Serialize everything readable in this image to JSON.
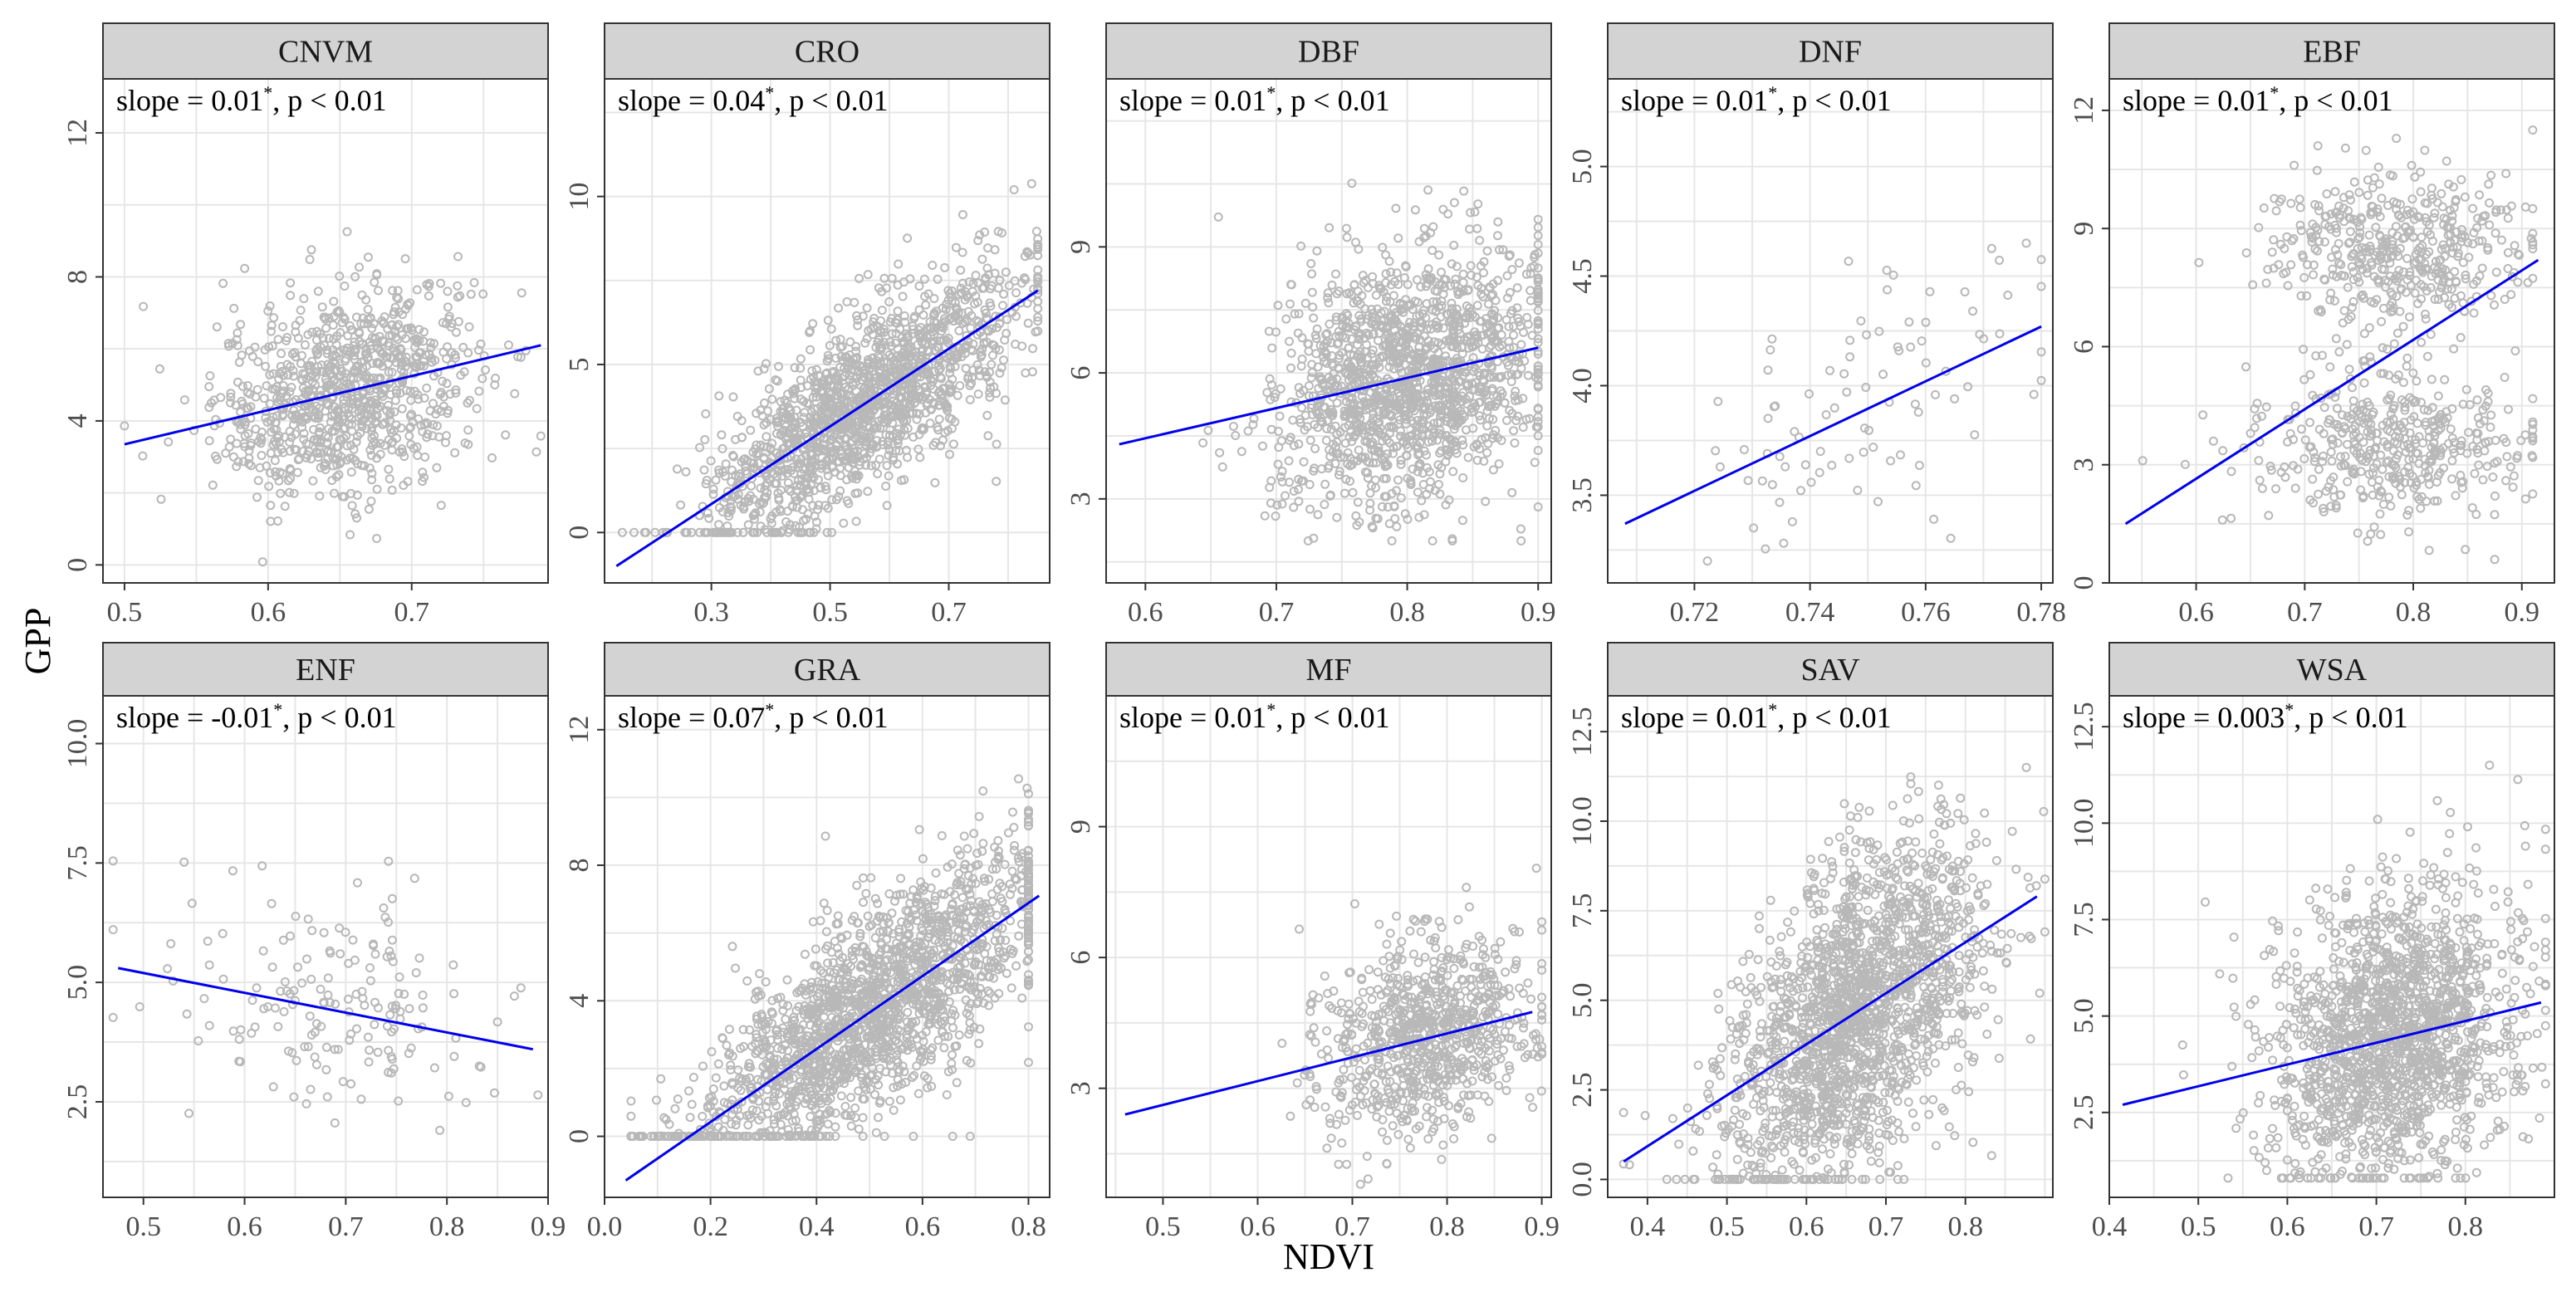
{
  "chart_data": {
    "type": "scatter",
    "x_axis_label": "NDVI",
    "y_axis_label": "GPP",
    "panels": [
      {
        "title": "CNVM",
        "annotation": {
          "prefix": "slope = 0.01",
          "star": "*",
          "suffix": ", p < 0.01"
        },
        "xlim": [
          0.485,
          0.795
        ],
        "ylim": [
          -0.5,
          13.5
        ],
        "xticks": [
          0.5,
          0.6,
          0.7
        ],
        "xtick_labels": [
          "0.5",
          "0.6",
          "0.7"
        ],
        "yticks": [
          0,
          4,
          8,
          12
        ],
        "ytick_labels": [
          "0",
          "4",
          "8",
          "12"
        ],
        "fit": {
          "x": [
            0.5,
            0.79
          ],
          "y": [
            3.35,
            6.1
          ]
        },
        "cloud": {
          "n": 900,
          "x_mean": 0.655,
          "x_sd": 0.045,
          "y_slope": 9.5,
          "y_noise": 1.4,
          "x_min": 0.5,
          "x_max": 0.79,
          "y_min": 0,
          "y_max": 12
        }
      },
      {
        "title": "CRO",
        "annotation": {
          "prefix": "slope = 0.04",
          "star": "*",
          "suffix": ", p < 0.01"
        },
        "xlim": [
          0.12,
          0.87
        ],
        "ylim": [
          -1.5,
          13.5
        ],
        "xticks": [
          0.3,
          0.5,
          0.7
        ],
        "xtick_labels": [
          "0.3",
          "0.5",
          "0.7"
        ],
        "yticks": [
          0,
          5,
          10
        ],
        "ytick_labels": [
          "0",
          "5",
          "10"
        ],
        "fit": {
          "x": [
            0.14,
            0.85
          ],
          "y": [
            -1.0,
            7.2
          ]
        },
        "cloud": {
          "n": 1500,
          "x_mean": 0.55,
          "x_sd": 0.13,
          "y_slope": 11.5,
          "y_noise": 1.3,
          "x_min": 0.15,
          "x_max": 0.85,
          "y_min": 0,
          "y_max": 10.5
        }
      },
      {
        "title": "DBF",
        "annotation": {
          "prefix": "slope = 0.01",
          "star": "*",
          "suffix": ", p < 0.01"
        },
        "xlim": [
          0.57,
          0.91
        ],
        "ylim": [
          1.0,
          13.0
        ],
        "xticks": [
          0.6,
          0.7,
          0.8,
          0.9
        ],
        "xtick_labels": [
          "0.6",
          "0.7",
          "0.8",
          "0.9"
        ],
        "yticks": [
          3,
          6,
          9
        ],
        "ytick_labels": [
          "3",
          "6",
          "9"
        ],
        "fit": {
          "x": [
            0.58,
            0.9
          ],
          "y": [
            4.3,
            6.6
          ]
        },
        "cloud": {
          "n": 1500,
          "x_mean": 0.8,
          "x_sd": 0.05,
          "y_slope": 7.0,
          "y_noise": 1.5,
          "x_min": 0.58,
          "x_max": 0.9,
          "y_min": 2,
          "y_max": 11
        }
      },
      {
        "title": "DNF",
        "annotation": {
          "prefix": "slope = 0.01",
          "star": "*",
          "suffix": ", p < 0.01"
        },
        "xlim": [
          0.705,
          0.782
        ],
        "ylim": [
          3.1,
          5.4
        ],
        "xticks": [
          0.72,
          0.74,
          0.76,
          0.78
        ],
        "xtick_labels": [
          "0.72",
          "0.74",
          "0.76",
          "0.78"
        ],
        "yticks": [
          3.5,
          4.0,
          4.5,
          5.0
        ],
        "ytick_labels": [
          "3.5",
          "4.0",
          "4.5",
          "5.0"
        ],
        "fit": {
          "x": [
            0.708,
            0.78
          ],
          "y": [
            3.37,
            4.27
          ]
        },
        "cloud": {
          "n": 90,
          "x_mean": 0.748,
          "x_sd": 0.015,
          "y_slope": 12.5,
          "y_noise": 0.3,
          "x_min": 0.708,
          "x_max": 0.78,
          "y_min": 3.2,
          "y_max": 5.2
        }
      },
      {
        "title": "EBF",
        "annotation": {
          "prefix": "slope = 0.01",
          "star": "*",
          "suffix": ", p < 0.01"
        },
        "xlim": [
          0.52,
          0.93
        ],
        "ylim": [
          0.0,
          12.8
        ],
        "xticks": [
          0.6,
          0.7,
          0.8,
          0.9
        ],
        "xtick_labels": [
          "0.6",
          "0.7",
          "0.8",
          "0.9"
        ],
        "yticks": [
          0,
          3,
          6,
          9,
          12
        ],
        "ytick_labels": [
          "0",
          "3",
          "6",
          "9",
          "12"
        ],
        "fit": {
          "x": [
            0.535,
            0.915
          ],
          "y": [
            1.5,
            8.2
          ]
        },
        "cloud": {
          "n": 900,
          "x_mean": 0.78,
          "x_sd": 0.06,
          "y_slope": 0,
          "y_noise": 1.0,
          "x_min": 0.54,
          "x_max": 0.91,
          "y_min": 0.5,
          "y_max": 11.5,
          "clusters": [
            3.5,
            8.5
          ]
        }
      },
      {
        "title": "ENF",
        "annotation": {
          "prefix": "slope = -0.01",
          "star": "*",
          "suffix": ", p < 0.01"
        },
        "xlim": [
          0.46,
          0.9
        ],
        "ylim": [
          0.5,
          11.0
        ],
        "xticks": [
          0.5,
          0.6,
          0.7,
          0.8,
          0.9
        ],
        "xtick_labels": [
          "0.5",
          "0.6",
          "0.7",
          "0.8",
          "0.9"
        ],
        "yticks": [
          2.5,
          5.0,
          7.5,
          10.0
        ],
        "ytick_labels": [
          "2.5",
          "5.0",
          "7.5",
          "10.0"
        ],
        "fit": {
          "x": [
            0.475,
            0.885
          ],
          "y": [
            5.3,
            3.6
          ]
        },
        "cloud": {
          "n": 170,
          "x_mean": 0.7,
          "x_sd": 0.08,
          "y_slope": -4.1,
          "y_noise": 1.3,
          "x_min": 0.47,
          "x_max": 0.89,
          "y_min": 1,
          "y_max": 10
        }
      },
      {
        "title": "GRA",
        "annotation": {
          "prefix": "slope = 0.07",
          "star": "*",
          "suffix": ", p < 0.01"
        },
        "xlim": [
          0.0,
          0.84
        ],
        "ylim": [
          -1.8,
          13.0
        ],
        "xticks": [
          0.0,
          0.2,
          0.4,
          0.6,
          0.8
        ],
        "xtick_labels": [
          "0.0",
          "0.2",
          "0.4",
          "0.6",
          "0.8"
        ],
        "yticks": [
          0,
          4,
          8,
          12
        ],
        "ytick_labels": [
          "0",
          "4",
          "8",
          "12"
        ],
        "fit": {
          "x": [
            0.04,
            0.82
          ],
          "y": [
            -1.3,
            7.1
          ]
        },
        "cloud": {
          "n": 1800,
          "x_mean": 0.5,
          "x_sd": 0.17,
          "y_slope": 10.8,
          "y_noise": 1.5,
          "x_min": 0.05,
          "x_max": 0.8,
          "y_min": 0,
          "y_max": 11.5
        }
      },
      {
        "title": "MF",
        "annotation": {
          "prefix": "slope = 0.01",
          "star": "*",
          "suffix": ", p < 0.01"
        },
        "xlim": [
          0.44,
          0.91
        ],
        "ylim": [
          0.5,
          12.0
        ],
        "xticks": [
          0.5,
          0.6,
          0.7,
          0.8,
          0.9
        ],
        "xtick_labels": [
          "0.5",
          "0.6",
          "0.7",
          "0.8",
          "0.9"
        ],
        "yticks": [
          3,
          6,
          9
        ],
        "ytick_labels": [
          "3",
          "6",
          "9"
        ],
        "fit": {
          "x": [
            0.46,
            0.89
          ],
          "y": [
            2.4,
            4.75
          ]
        },
        "cloud": {
          "n": 800,
          "x_mean": 0.78,
          "x_sd": 0.06,
          "y_slope": 5.5,
          "y_noise": 1.1,
          "x_min": 0.46,
          "x_max": 0.9,
          "y_min": 0.8,
          "y_max": 9.5
        }
      },
      {
        "title": "SAV",
        "annotation": {
          "prefix": "slope = 0.01",
          "star": "*",
          "suffix": ", p < 0.01"
        },
        "xlim": [
          0.35,
          0.91
        ],
        "ylim": [
          -0.5,
          13.5
        ],
        "xticks": [
          0.4,
          0.5,
          0.6,
          0.7,
          0.8
        ],
        "xtick_labels": [
          "0.4",
          "0.5",
          "0.6",
          "0.7",
          "0.8"
        ],
        "yticks": [
          0.0,
          2.5,
          5.0,
          7.5,
          10.0,
          12.5
        ],
        "ytick_labels": [
          "0.0",
          "2.5",
          "5.0",
          "7.5",
          "10.0",
          "12.5"
        ],
        "fit": {
          "x": [
            0.37,
            0.89
          ],
          "y": [
            0.5,
            7.9
          ]
        },
        "cloud": {
          "n": 1800,
          "x_mean": 0.66,
          "x_sd": 0.08,
          "y_slope": 14.2,
          "y_noise": 2.1,
          "x_min": 0.37,
          "x_max": 0.9,
          "y_min": 0,
          "y_max": 11.5
        }
      },
      {
        "title": "WSA",
        "annotation": {
          "prefix": "slope = 0.003",
          "star": "*",
          "suffix": ", p < 0.01"
        },
        "xlim": [
          0.4,
          0.9
        ],
        "ylim": [
          0.3,
          13.3
        ],
        "xticks": [
          0.4,
          0.5,
          0.6,
          0.7,
          0.8
        ],
        "xtick_labels": [
          "0.4",
          "0.5",
          "0.6",
          "0.7",
          "0.8"
        ],
        "yticks": [
          2.5,
          5.0,
          7.5,
          10.0,
          12.5
        ],
        "ytick_labels": [
          "2.5",
          "5.0",
          "7.5",
          "10.0",
          "12.5"
        ],
        "fit": {
          "x": [
            0.415,
            0.885
          ],
          "y": [
            2.7,
            5.35
          ]
        },
        "cloud": {
          "n": 1600,
          "x_mean": 0.72,
          "x_sd": 0.07,
          "y_slope": 5.6,
          "y_noise": 1.9,
          "x_min": 0.42,
          "x_max": 0.89,
          "y_min": 0.8,
          "y_max": 11.5
        }
      }
    ]
  }
}
